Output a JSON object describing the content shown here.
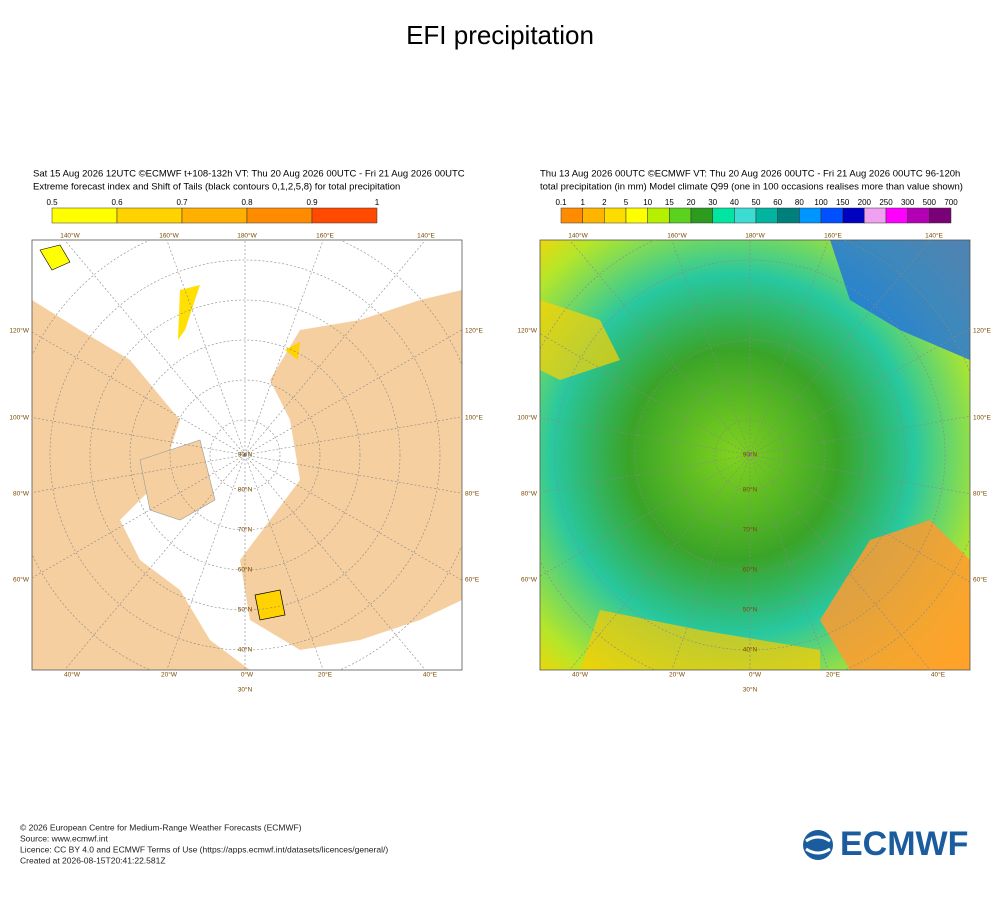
{
  "title": "EFI precipitation",
  "panels": [
    {
      "header_lines": [
        "Sat 15 Aug 2026 12UTC ©ECMWF t+108-132h  VT: Thu 20 Aug 2026 00UTC - Fri 21 Aug 2026 00UTC",
        "Extreme forecast index and Shift of Tails (black contours 0,1,2,5,8) for total precipitation"
      ],
      "colorbar": {
        "labels": [
          "0.5",
          "0.6",
          "0.7",
          "0.8",
          "0.9",
          "1"
        ],
        "colors": [
          "#ffff00",
          "#ffd200",
          "#ffb000",
          "#ff8c00",
          "#ff4a00"
        ]
      },
      "map": {
        "lon_top": [
          "140°W",
          "160°W",
          "180°W",
          "160°E",
          "140°E"
        ],
        "lat_left": [
          "120°W",
          "100°W",
          "80°W",
          "60°W"
        ],
        "lat_right": [
          "120°E",
          "100°E",
          "80°E",
          "60°E"
        ],
        "lon_bottom": [
          "40°W",
          "20°W",
          "0°W",
          "20°E",
          "40°E"
        ],
        "circle_labels": [
          "90°N",
          "80°N",
          "70°N",
          "60°N",
          "50°N",
          "40°N",
          "30°N"
        ]
      }
    },
    {
      "header_lines": [
        "Thu 13 Aug 2026 00UTC ©ECMWF VT: Thu 20 Aug 2026 00UTC - Fri 21 Aug 2026 00UTC   96-120h",
        "total precipitation (in mm)  Model climate Q99 (one in 100 occasions realises more than value shown)"
      ],
      "colorbar": {
        "labels": [
          "0.1",
          "1",
          "2",
          "5",
          "10",
          "15",
          "20",
          "30",
          "40",
          "50",
          "60",
          "80",
          "100",
          "150",
          "200",
          "250",
          "300",
          "500",
          "700"
        ],
        "colors": [
          "#ff8c00",
          "#ffb400",
          "#ffdc00",
          "#ffff00",
          "#b4f000",
          "#5ad21e",
          "#2d9b1e",
          "#00e6a0",
          "#3cdcd2",
          "#00b4a0",
          "#00807a",
          "#0096ff",
          "#0050ff",
          "#0000c0",
          "#f0a0f0",
          "#ff00ff",
          "#b400b4",
          "#7a0078"
        ]
      },
      "map": {
        "lon_top": [
          "140°W",
          "160°W",
          "180°W",
          "160°E",
          "140°E"
        ],
        "lat_left": [
          "120°W",
          "100°W",
          "80°W",
          "60°W"
        ],
        "lat_right": [
          "120°E",
          "100°E",
          "80°E",
          "60°E"
        ],
        "lon_bottom": [
          "40°W",
          "20°W",
          "0°W",
          "20°E",
          "40°E"
        ],
        "circle_labels": [
          "90°N",
          "80°N",
          "70°N",
          "60°N",
          "50°N",
          "40°N",
          "30°N"
        ]
      }
    }
  ],
  "footer": [
    "© 2026 European Centre for Medium-Range Weather Forecasts (ECMWF)",
    "Source: www.ecmwf.int",
    "Licence: CC BY 4.0 and ECMWF Terms of Use (https://apps.ecmwf.int/datasets/licences/general/)",
    "Created at 2026-08-15T20:41:22.581Z"
  ],
  "logo": "ECMWF"
}
